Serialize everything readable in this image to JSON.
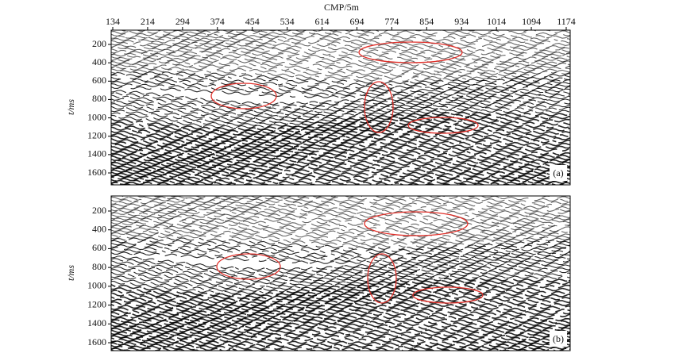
{
  "figure": {
    "x_label": "CMP/5m",
    "x_ticks": [
      134,
      214,
      294,
      374,
      454,
      534,
      614,
      694,
      774,
      854,
      934,
      1014,
      1094,
      1174
    ],
    "panels": [
      {
        "label": "(a)",
        "y_label": "t/ms",
        "y_ticks": [
          200,
          400,
          600,
          800,
          1000,
          1200,
          1400,
          1600
        ]
      },
      {
        "label": "(b)",
        "y_label": "t/ms",
        "y_ticks": [
          200,
          400,
          600,
          800,
          1000,
          1200,
          1400,
          1600
        ]
      }
    ]
  }
}
